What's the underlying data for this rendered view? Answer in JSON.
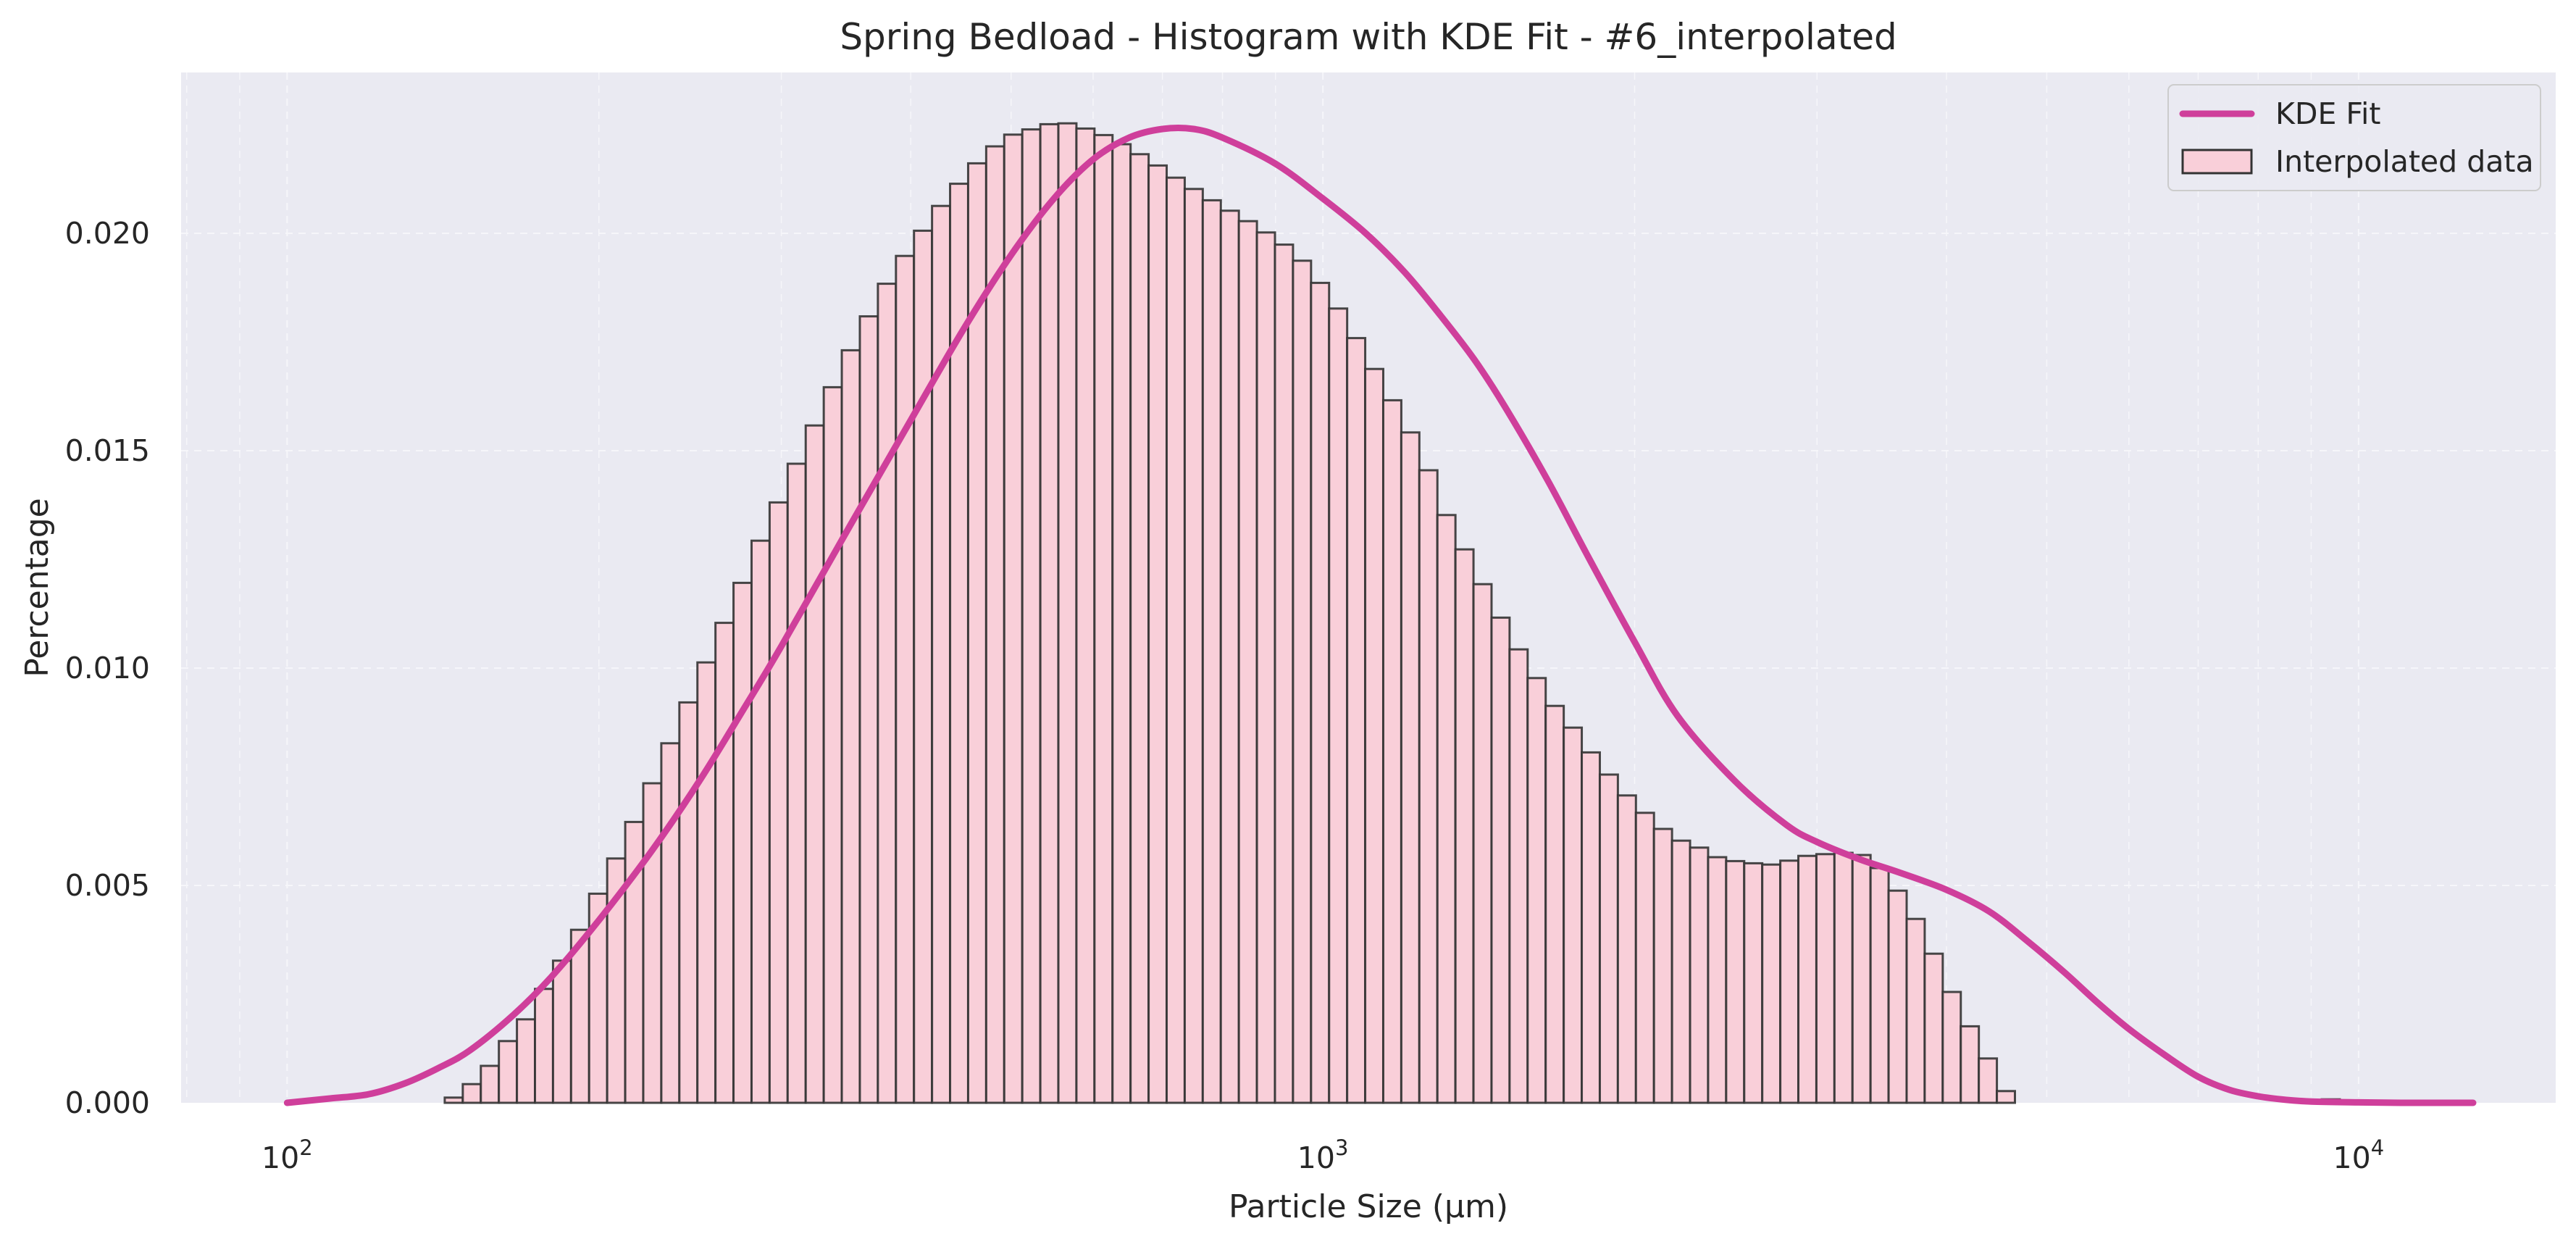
{
  "chart_data": {
    "type": "bar",
    "title": "Spring Bedload - Histogram with KDE Fit - #6_interpolated",
    "xlabel": "Particle Size (μm)",
    "ylabel": "Percentage",
    "x_scale": "log",
    "xlim": [
      79,
      15500
    ],
    "ylim": [
      0,
      0.0237
    ],
    "grid": true,
    "legend_position": "top-right",
    "x_ticks": [
      {
        "value": 100,
        "base": "10",
        "exp": "2"
      },
      {
        "value": 1000,
        "base": "10",
        "exp": "3"
      },
      {
        "value": 10000,
        "base": "10",
        "exp": "4"
      }
    ],
    "y_ticks": [
      "0.000",
      "0.005",
      "0.010",
      "0.015",
      "0.020"
    ],
    "y_tick_values": [
      0,
      0.005,
      0.01,
      0.015,
      0.02
    ],
    "colors": {
      "background": "#eaeaf2",
      "bar_fill": "#f9cfd9",
      "bar_edge": "#333333",
      "kde": "#cf3f9b",
      "grid": "#f6f6fa"
    },
    "series": [
      {
        "name": "Interpolated data",
        "kind": "histogram",
        "bin_start": 107.2,
        "bin_ratio": 1.04094,
        "values": [
          0,
          0,
          0,
          0,
          0,
          0,
          0,
          0.00012,
          0.00043,
          0.00085,
          0.00142,
          0.00192,
          0.00262,
          0.00327,
          0.00398,
          0.00481,
          0.00562,
          0.00646,
          0.00735,
          0.00827,
          0.00921,
          0.01013,
          0.01104,
          0.01196,
          0.01293,
          0.01381,
          0.0147,
          0.01558,
          0.01646,
          0.01731,
          0.01809,
          0.01884,
          0.01948,
          0.02006,
          0.02063,
          0.02114,
          0.02161,
          0.022,
          0.02227,
          0.02239,
          0.02251,
          0.02253,
          0.02241,
          0.02226,
          0.02205,
          0.02182,
          0.02156,
          0.02128,
          0.02102,
          0.02076,
          0.02052,
          0.02028,
          0.02002,
          0.01974,
          0.01937,
          0.01886,
          0.01827,
          0.01759,
          0.01688,
          0.01616,
          0.01542,
          0.01455,
          0.01352,
          0.01273,
          0.01193,
          0.01116,
          0.01043,
          0.00977,
          0.00913,
          0.00863,
          0.00806,
          0.00755,
          0.00707,
          0.00667,
          0.0063,
          0.00603,
          0.00587,
          0.00565,
          0.00556,
          0.00551,
          0.00548,
          0.00557,
          0.00568,
          0.00572,
          0.00575,
          0.0057,
          0.0054,
          0.00488,
          0.00423,
          0.00343,
          0.00255,
          0.00176,
          0.00102,
          0.00027,
          0,
          0,
          0,
          0,
          0,
          0,
          0,
          0,
          0,
          0,
          0,
          0,
          0,
          0,
          0,
          0,
          0,
          8e-05,
          0
        ]
      },
      {
        "name": "KDE Fit",
        "kind": "line",
        "x": [
          100,
          110,
          120,
          130,
          140,
          150,
          165,
          180,
          200,
          225,
          250,
          275,
          300,
          350,
          400,
          450,
          500,
          550,
          600,
          650,
          700,
          750,
          800,
          900,
          1000,
          1100,
          1200,
          1300,
          1400,
          1500,
          1650,
          1800,
          2000,
          2200,
          2500,
          2800,
          3000,
          3300,
          3600,
          4000,
          4400,
          4800,
          5200,
          5600,
          6000,
          6500,
          7000,
          7500,
          8000,
          8500,
          9000,
          10000,
          11000,
          12000,
          12900
        ],
        "y": [
          0,
          0.0001,
          0.0002,
          0.00045,
          0.0008,
          0.0012,
          0.002,
          0.0029,
          0.0042,
          0.0058,
          0.0074,
          0.009,
          0.0105,
          0.0133,
          0.0157,
          0.0178,
          0.0195,
          0.0208,
          0.0217,
          0.0222,
          0.0224,
          0.0224,
          0.0222,
          0.0216,
          0.0208,
          0.02,
          0.0191,
          0.0181,
          0.0171,
          0.016,
          0.0143,
          0.0126,
          0.0106,
          0.0089,
          0.0074,
          0.0064,
          0.006,
          0.0056,
          0.0053,
          0.0049,
          0.0044,
          0.0037,
          0.003,
          0.0023,
          0.0017,
          0.0011,
          0.0006,
          0.0003,
          0.00015,
          7e-05,
          3e-05,
          1e-05,
          0,
          0,
          0
        ]
      }
    ]
  }
}
